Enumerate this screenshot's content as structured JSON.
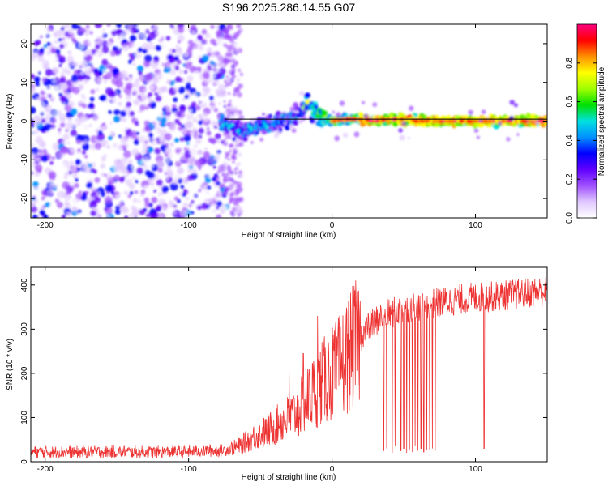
{
  "figure_title": "S196.2025.286.14.55.G07",
  "chart_data": [
    {
      "type": "heatmap",
      "title": "S196.2025.286.14.55.G07",
      "xlabel": "Height of straight line (km)",
      "ylabel": "Frequency (Hz)",
      "xlim": [
        -210,
        150
      ],
      "ylim": [
        -25,
        25
      ],
      "xticks": [
        -200,
        -100,
        0,
        100
      ],
      "yticks": [
        -20,
        -10,
        0,
        10,
        20
      ],
      "colorbar": {
        "label": "Normalized spectral amplitude",
        "range": [
          0,
          1
        ],
        "ticks": [
          0.0,
          0.2,
          0.4,
          0.6,
          0.8
        ],
        "colors": [
          "#ffffff",
          "#e0c8ff",
          "#a050ff",
          "#6000ff",
          "#0000ff",
          "#0090ff",
          "#00e0e0",
          "#00e000",
          "#a0ff00",
          "#ffff00",
          "#ff9000",
          "#ff0000",
          "#ff0080"
        ]
      },
      "noise_region": {
        "x_range": [
          -210,
          -70
        ],
        "y_range": [
          -25,
          25
        ]
      },
      "ridge": [
        [
          -78,
          0
        ],
        [
          -70,
          -1.5
        ],
        [
          -62,
          -3
        ],
        [
          -55,
          -2
        ],
        [
          -45,
          -1
        ],
        [
          -35,
          0
        ],
        [
          -25,
          1
        ],
        [
          -20,
          3
        ],
        [
          -17,
          5.5
        ],
        [
          -14,
          2.5
        ],
        [
          -8,
          1
        ],
        [
          0,
          0
        ],
        [
          10,
          0.5
        ],
        [
          20,
          0.5
        ],
        [
          30,
          0
        ],
        [
          40,
          0.5
        ],
        [
          50,
          0.5
        ],
        [
          60,
          0
        ],
        [
          80,
          0
        ],
        [
          100,
          0
        ],
        [
          120,
          0
        ],
        [
          150,
          0
        ]
      ],
      "reference_line_y": 0.5
    },
    {
      "type": "line",
      "title": "",
      "xlabel": "Height of straight line (km)",
      "ylabel": "SNR (10 * v/v)",
      "xlim": [
        -210,
        150
      ],
      "ylim": [
        0,
        440
      ],
      "xticks": [
        -200,
        -100,
        0,
        100
      ],
      "yticks": [
        0,
        100,
        200,
        300,
        400
      ],
      "series": [
        {
          "name": "SNR",
          "color": "#ee3333",
          "x": [
            -210,
            -190,
            -170,
            -150,
            -130,
            -110,
            -90,
            -75,
            -65,
            -55,
            -45,
            -35,
            -25,
            -15,
            -5,
            5,
            15,
            25,
            35,
            45,
            55,
            65,
            75,
            85,
            95,
            105,
            115,
            125,
            135,
            145,
            150
          ],
          "y": [
            22,
            22,
            22,
            23,
            22,
            22,
            24,
            26,
            35,
            55,
            70,
            90,
            110,
            150,
            185,
            215,
            260,
            305,
            330,
            340,
            350,
            355,
            360,
            365,
            370,
            372,
            375,
            378,
            382,
            385,
            385
          ],
          "spikes_up": [
            [
              -30,
              210
            ],
            [
              -20,
              245
            ],
            [
              -10,
              330
            ],
            [
              60,
              385
            ],
            [
              150,
              415
            ]
          ],
          "dropouts": [
            [
              36,
              25
            ],
            [
              38,
              30
            ],
            [
              42,
              20
            ],
            [
              44,
              35
            ],
            [
              48,
              25
            ],
            [
              50,
              30
            ],
            [
              52,
              20
            ],
            [
              54,
              28
            ],
            [
              56,
              22
            ],
            [
              58,
              35
            ],
            [
              60,
              25
            ],
            [
              62,
              30
            ],
            [
              64,
              22
            ],
            [
              66,
              26
            ],
            [
              68,
              28
            ],
            [
              70,
              30
            ],
            [
              72,
              25
            ],
            [
              106,
              30
            ]
          ]
        }
      ]
    }
  ]
}
